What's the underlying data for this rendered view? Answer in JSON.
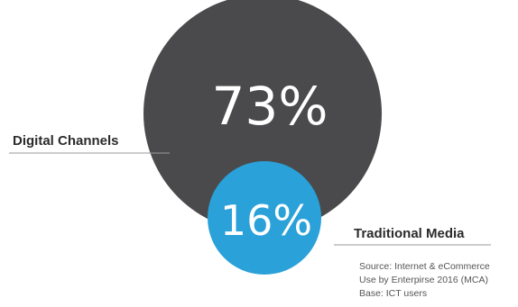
{
  "chart_data": {
    "type": "bubble",
    "series": [
      {
        "label": "Digital Channels",
        "value": 73,
        "value_text": "73%",
        "color": "#4a4a4c"
      },
      {
        "label": "Traditional Media",
        "value": 16,
        "value_text": "16%",
        "color": "#2aa1d9"
      }
    ],
    "label_color": "#2b2b2b",
    "value_text_color": "#ffffff"
  },
  "source": {
    "lines": [
      "Source: Internet & eCommerce",
      "Use by  Enterpirse 2016 (MCA)",
      "Base: ICT users"
    ]
  }
}
